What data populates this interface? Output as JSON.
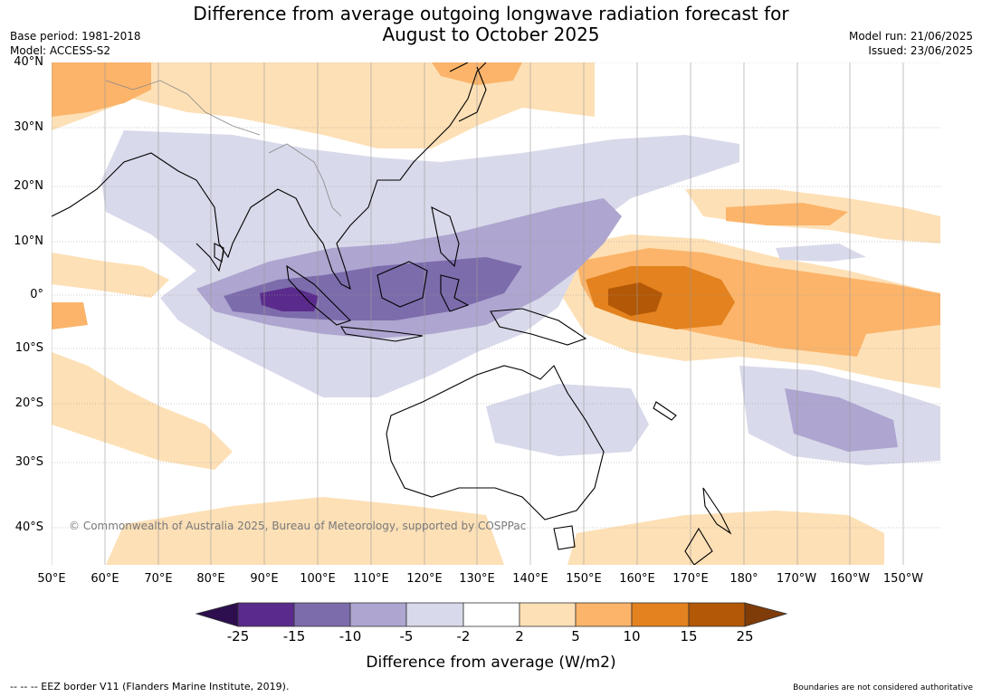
{
  "header": {
    "title_line1": "Difference from average outgoing longwave radiation forecast for",
    "title_line2": "August to October 2025",
    "base_period": "Base period: 1981-2018",
    "model": "Model: ACCESS-S2",
    "model_run": "Model run: 21/06/2025",
    "issued": "Issued: 23/06/2025"
  },
  "map": {
    "copyright": "© Commonwealth of Australia 2025, Bureau of Meteorology, supported by COSPPac",
    "lat_labels": [
      "40°N",
      "30°N",
      "20°N",
      "10°N",
      "0°",
      "10°S",
      "20°S",
      "30°S",
      "40°S"
    ],
    "lon_labels": [
      "50°E",
      "60°E",
      "70°E",
      "80°E",
      "90°E",
      "100°E",
      "110°E",
      "120°E",
      "130°E",
      "140°E",
      "150°E",
      "160°E",
      "170°E",
      "180°",
      "170°W",
      "160°W",
      "150°W"
    ]
  },
  "colorbar": {
    "label": "Difference from average (W/m2)",
    "ticks": [
      "-25",
      "-15",
      "-10",
      "-5",
      "-2",
      "2",
      "5",
      "10",
      "15",
      "25"
    ],
    "colors": [
      "#2d0f4f",
      "#5a2b8c",
      "#7d6cac",
      "#aea5d0",
      "#d8d9ea",
      "#ffffff",
      "#fde0b6",
      "#fbb46a",
      "#e3821e",
      "#b35806",
      "#7f3b08"
    ]
  },
  "footer": {
    "eez": "--  --  -- EEZ border V11 (Flanders Marine Institute, 2019).",
    "disclaimer": "Boundaries are not considered authoritative"
  }
}
